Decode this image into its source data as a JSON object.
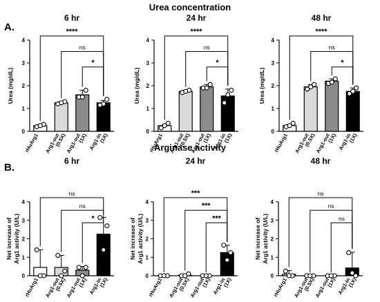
{
  "figure": {
    "section_a_label": "A.",
    "section_a_title": "Urea concentration",
    "section_b_label": "B.",
    "section_b_title": "Arginase activity"
  },
  "colors": {
    "rhuarg1": "#ffffff",
    "arg1_out_05x": "#d9d9d9",
    "arg1_out_1x": "#8c8c8c",
    "arg1_in_1x": "#000000"
  },
  "chart_data": [
    {
      "id": "urea-6hr",
      "type": "bar",
      "title": "6 hr",
      "ylabel": "Urea (mg/dL)",
      "ylim": [
        0,
        4
      ],
      "yticks": [
        "0",
        "1",
        "2",
        "3",
        "4"
      ],
      "categories": [
        "rHuArg1",
        "Arg1-out (0.5X)",
        "Arg1-out (1X)",
        "Arg1-in (1X)"
      ],
      "tick_lines": [
        [
          "rHuArg1"
        ],
        [
          "Arg1-out",
          "(0.5X)"
        ],
        [
          "Arg1-out",
          "(1X)"
        ],
        [
          "Arg1-in",
          "(1X)"
        ]
      ],
      "values": [
        0.25,
        1.25,
        1.6,
        1.25
      ],
      "errors": [
        0.05,
        0.05,
        0.2,
        0.1
      ],
      "points": [
        [
          0.2,
          0.3,
          0.25
        ],
        [
          1.2,
          1.3,
          1.25
        ],
        [
          1.5,
          1.8,
          1.5
        ],
        [
          1.15,
          1.4,
          1.2
        ]
      ],
      "significance": [
        {
          "from": 0,
          "to": 3,
          "label": "****"
        },
        {
          "from": 1,
          "to": 3,
          "label": "ns"
        },
        {
          "from": 2,
          "to": 3,
          "label": "*"
        }
      ]
    },
    {
      "id": "urea-24hr",
      "type": "bar",
      "title": "24 hr",
      "ylabel": "Urea (mg/dL)",
      "ylim": [
        0,
        4
      ],
      "yticks": [
        "0",
        "1",
        "2",
        "3",
        "4"
      ],
      "categories": [
        "rHuArg1",
        "Arg1-out (0.5X)",
        "Arg1-out (1X)",
        "Arg1-in (1X)"
      ],
      "tick_lines": [
        [
          "rHuArg1"
        ],
        [
          "Arg1-out",
          "(0.5X)"
        ],
        [
          "Arg1-out",
          "(1X)"
        ],
        [
          "Arg1-in",
          "(1X)"
        ]
      ],
      "values": [
        0.25,
        1.75,
        1.95,
        1.55
      ],
      "errors": [
        0.05,
        0.05,
        0.1,
        0.3
      ],
      "points": [
        [
          0.15,
          0.35,
          0.25
        ],
        [
          1.7,
          1.8,
          1.75
        ],
        [
          1.9,
          2.05,
          1.9
        ],
        [
          1.25,
          1.8,
          1.6
        ]
      ],
      "significance": [
        {
          "from": 0,
          "to": 3,
          "label": "****"
        },
        {
          "from": 1,
          "to": 3,
          "label": "ns"
        },
        {
          "from": 2,
          "to": 3,
          "label": "*"
        }
      ]
    },
    {
      "id": "urea-48hr",
      "type": "bar",
      "title": "48 hr",
      "ylabel": "Urea (mg/dL)",
      "ylim": [
        0,
        4
      ],
      "yticks": [
        "0",
        "1",
        "2",
        "3",
        "4"
      ],
      "categories": [
        "rHuArg1",
        "Arg1-out (0.5X)",
        "Arg1-out (1X)",
        "Arg1-in (1X)"
      ],
      "tick_lines": [
        [
          "rHuArg1"
        ],
        [
          "Arg1-out",
          "(0.5X)"
        ],
        [
          "Arg1-out",
          "(1X)"
        ],
        [
          "Arg1-in",
          "(1X)"
        ]
      ],
      "values": [
        0.25,
        1.95,
        2.2,
        1.75
      ],
      "errors": [
        0.05,
        0.1,
        0.1,
        0.15
      ],
      "points": [
        [
          0.2,
          0.35,
          0.25
        ],
        [
          1.85,
          2.05,
          1.95
        ],
        [
          2.1,
          2.3,
          2.15
        ],
        [
          1.65,
          1.9,
          1.75
        ]
      ],
      "significance": [
        {
          "from": 0,
          "to": 3,
          "label": "****"
        },
        {
          "from": 1,
          "to": 3,
          "label": "ns"
        },
        {
          "from": 2,
          "to": 3,
          "label": "*"
        }
      ]
    },
    {
      "id": "arginase-6hr",
      "type": "bar",
      "title": "6 hr",
      "ylabel_lines": [
        "Net increase of",
        "Arg1 activity (U/L)"
      ],
      "ylim": [
        0,
        4
      ],
      "yticks": [
        "0",
        "1",
        "2",
        "3",
        "4"
      ],
      "categories": [
        "rHuArg1",
        "Arg1-out (0.5X)",
        "Arg1-out (1X)",
        "Arg1-in (1X)"
      ],
      "tick_lines": [
        [
          "rHuArg1"
        ],
        [
          "Arg1-out",
          "(0.5X)"
        ],
        [
          "Arg1-out",
          "(1X)"
        ],
        [
          "Arg1-in",
          "(1X)"
        ]
      ],
      "values": [
        0.45,
        0.45,
        0.3,
        2.25
      ],
      "errors": [
        0.95,
        0.65,
        0.2,
        0.9
      ],
      "points": [
        [
          1.4,
          0.0,
          0.0
        ],
        [
          1.1,
          0.25,
          0.0
        ],
        [
          0.45,
          0.45,
          0.0
        ],
        [
          3.15,
          2.7,
          1.4
        ]
      ],
      "significance": [
        {
          "from": 0,
          "to": 3,
          "label": "ns"
        },
        {
          "from": 1,
          "to": 3,
          "label": "ns"
        },
        {
          "from": 2,
          "to": 3,
          "label": "*"
        }
      ]
    },
    {
      "id": "arginase-24hr",
      "type": "bar",
      "title": "24 hr",
      "ylabel_lines": [
        "Net increase of",
        "Arg1 activity (U/L)"
      ],
      "ylim": [
        0,
        4
      ],
      "yticks": [
        "0",
        "1",
        "2",
        "3",
        "4"
      ],
      "categories": [
        "rHuArg1",
        "Arg1-out (0.5X)",
        "Arg1-out (1X)",
        "Arg1-in (1X)"
      ],
      "tick_lines": [
        [
          "rHuArg1"
        ],
        [
          "Arg1-out",
          "(0.5X)"
        ],
        [
          "Arg1-out",
          "(1X)"
        ],
        [
          "Arg1-in",
          "(1X)"
        ]
      ],
      "values": [
        0.0,
        0.03,
        0.0,
        1.25
      ],
      "errors": [
        0.0,
        0.05,
        0.0,
        0.4
      ],
      "points": [
        [
          0.0,
          0.0,
          0.0
        ],
        [
          0.0,
          0.1,
          0.0
        ],
        [
          0.0,
          0.0,
          0.0
        ],
        [
          1.65,
          1.25,
          0.85
        ]
      ],
      "significance": [
        {
          "from": 0,
          "to": 3,
          "label": "***"
        },
        {
          "from": 1,
          "to": 3,
          "label": "***"
        },
        {
          "from": 2,
          "to": 3,
          "label": "***"
        }
      ]
    },
    {
      "id": "arginase-48hr",
      "type": "bar",
      "title": "48 hr",
      "ylabel_lines": [
        "Net increase of",
        "Arg1 activity (U/L)"
      ],
      "ylim": [
        0,
        4
      ],
      "yticks": [
        "0",
        "1",
        "2",
        "3",
        "4"
      ],
      "categories": [
        "rHuArg1",
        "Arg1-out (0.5X)",
        "Arg1-out (1X)",
        "Arg1-in (1X)"
      ],
      "tick_lines": [
        [
          "rHuArg1"
        ],
        [
          "Arg1-out",
          "(0.5X)"
        ],
        [
          "Arg1-out",
          "(1X)"
        ],
        [
          "Arg1-in",
          "(1X)"
        ]
      ],
      "values": [
        0.08,
        0.0,
        0.0,
        0.42
      ],
      "errors": [
        0.2,
        0.0,
        0.0,
        0.85
      ],
      "points": [
        [
          0.25,
          0.0,
          0.0
        ],
        [
          0.0,
          0.0,
          0.0
        ],
        [
          0.0,
          0.0,
          0.0
        ],
        [
          1.25,
          0.0,
          0.15
        ]
      ],
      "significance": [
        {
          "from": 0,
          "to": 3,
          "label": "ns"
        },
        {
          "from": 1,
          "to": 3,
          "label": "ns"
        },
        {
          "from": 2,
          "to": 3,
          "label": "ns"
        }
      ]
    }
  ]
}
